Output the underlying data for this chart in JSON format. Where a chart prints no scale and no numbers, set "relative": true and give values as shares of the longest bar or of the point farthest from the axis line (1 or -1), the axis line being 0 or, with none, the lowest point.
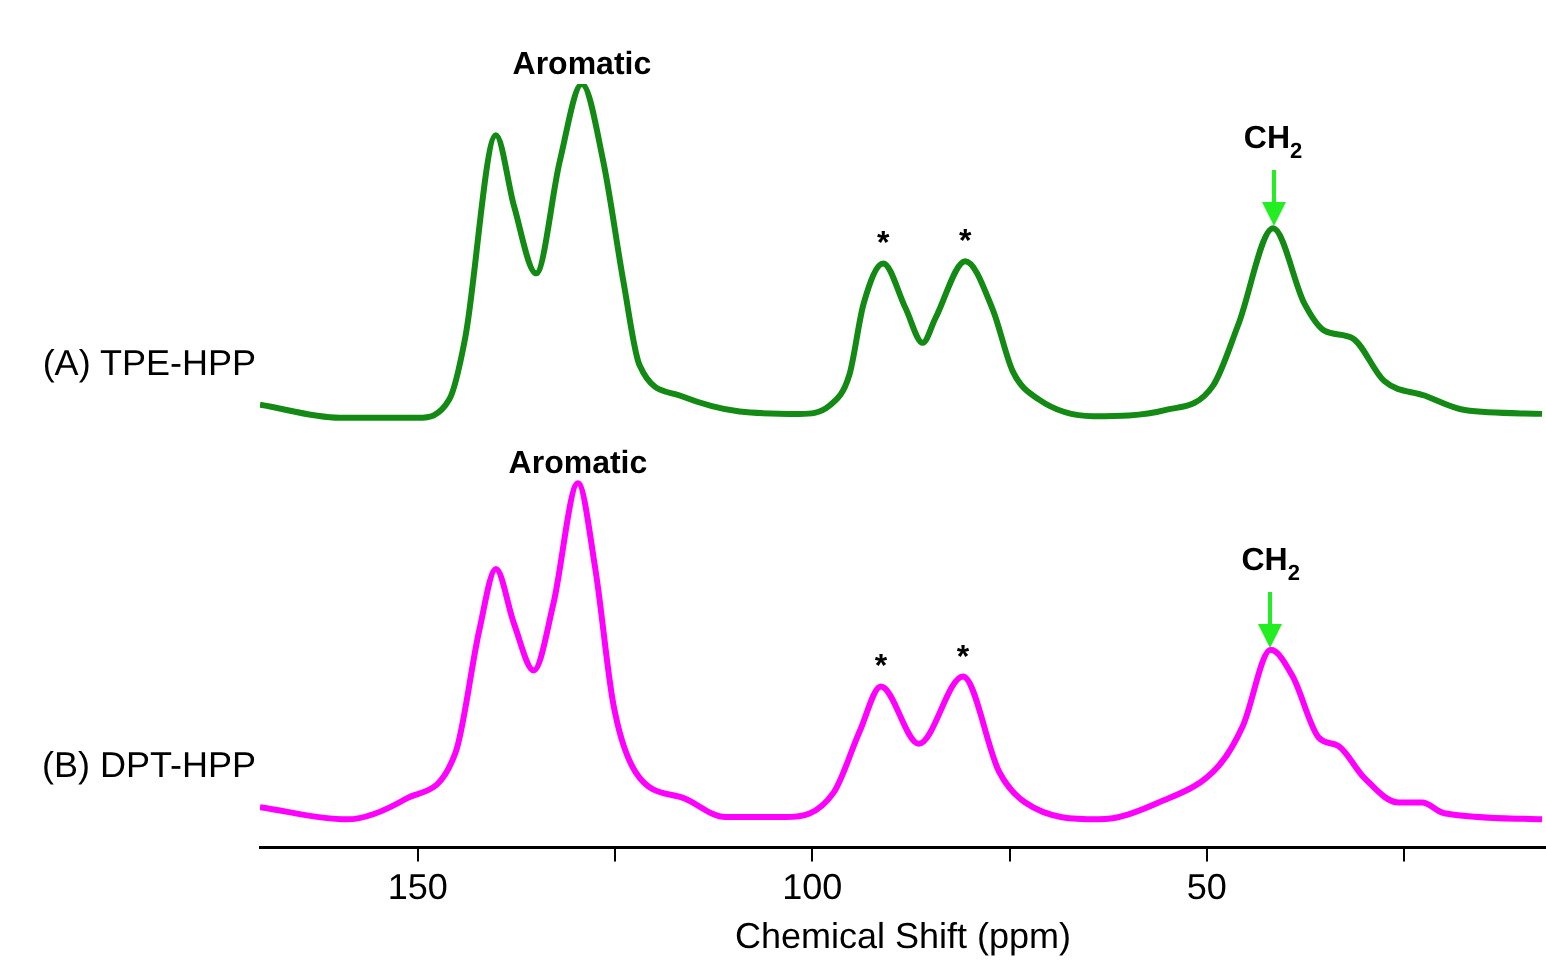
{
  "chart_data": {
    "type": "line",
    "relative": true,
    "xlabel": "Chemical Shift (ppm)",
    "xlim": [
      170,
      7
    ],
    "xticks": [
      150,
      100,
      50,
      {
        "value": 125,
        "label": null
      },
      {
        "value": 75,
        "label": null
      },
      {
        "value": 25,
        "label": null
      }
    ],
    "grid": false,
    "legend": false,
    "marker": "none",
    "line_style": "solid",
    "series": [
      {
        "name": "(A) TPE-HPP",
        "color": "#138a13",
        "x": [
          170,
          159.9,
          150,
          146,
          144,
          140.1,
          137.8,
          135,
          132,
          129.2,
          126.5,
          123.9,
          121.9,
          116.8,
          109.2,
          101.6,
          97.8,
          95.3,
          93.5,
          91,
          88.2,
          86,
          84.4,
          80.6,
          77.1,
          74.6,
          71.3,
          64.4,
          55.3,
          49.2,
          46,
          41.6,
          37.6,
          35.1,
          31.5,
          27.5,
          22.4,
          17.3,
          7.5
        ],
        "values": [
          0.58,
          0.563,
          0.563,
          0.587,
          0.667,
          0.933,
          0.84,
          0.752,
          0.899,
          1,
          0.899,
          0.739,
          0.632,
          0.592,
          0.571,
          0.568,
          0.579,
          0.619,
          0.712,
          0.765,
          0.707,
          0.661,
          0.693,
          0.768,
          0.704,
          0.624,
          0.587,
          0.565,
          0.573,
          0.605,
          0.685,
          0.811,
          0.712,
          0.677,
          0.667,
          0.611,
          0.592,
          0.573,
          0.568
        ]
      },
      {
        "name": "(B) DPT-HPP",
        "color": "#ff00ff",
        "x": [
          170,
          159,
          151.5,
          145.2,
          142.2,
          140.1,
          137.8,
          135.3,
          132.8,
          129.7,
          127.5,
          125.2,
          122.4,
          116.1,
          111,
          103.4,
          97.3,
          94,
          91.3,
          86.5,
          80.9,
          76.3,
          73,
          63.7,
          56.1,
          48.5,
          45.4,
          41.9,
          39.1,
          35.8,
          33.3,
          30,
          25.7,
          22.7,
          19.9,
          7.5
        ],
        "values": [
          0.053,
          0.037,
          0.064,
          0.125,
          0.285,
          0.365,
          0.293,
          0.232,
          0.32,
          0.477,
          0.365,
          0.187,
          0.099,
          0.064,
          0.04,
          0.04,
          0.072,
          0.152,
          0.211,
          0.136,
          0.224,
          0.099,
          0.059,
          0.037,
          0.059,
          0.107,
          0.16,
          0.259,
          0.224,
          0.144,
          0.133,
          0.091,
          0.059,
          0.059,
          0.045,
          0.037
        ]
      }
    ],
    "annotations": [
      {
        "text": "Aromatic",
        "x": 129.2,
        "y": 1
      },
      {
        "text": "*",
        "x": 91,
        "y": 0.765
      },
      {
        "text": "*",
        "x": 80.6,
        "y": 0.768
      },
      {
        "text": "CH$_{2}$",
        "x": 41.6,
        "y": 0.811
      },
      {
        "text": "Aromatic",
        "x": 129.7,
        "y": 0.477
      },
      {
        "text": "*",
        "x": 91.3,
        "y": 0.211
      },
      {
        "text": "*",
        "x": 80.9,
        "y": 0.224
      },
      {
        "text": "CH$_{2}$",
        "x": 41.9,
        "y": 0.259
      }
    ]
  }
}
